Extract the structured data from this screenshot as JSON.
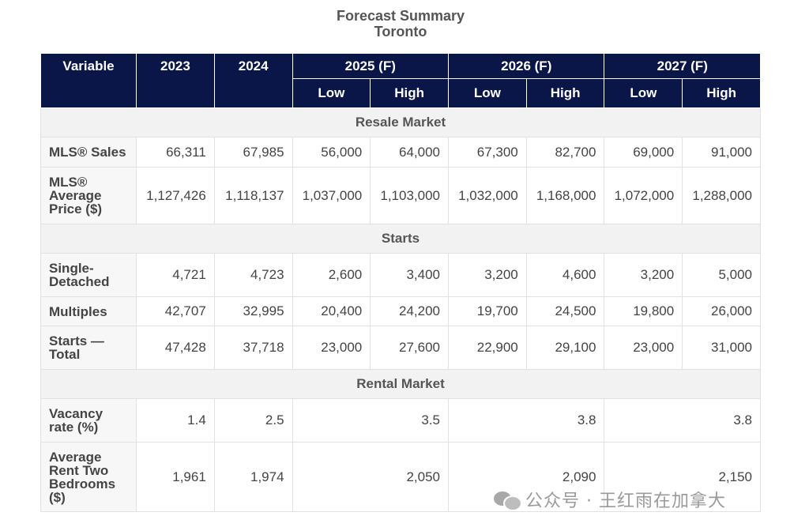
{
  "title": {
    "line1": "Forecast Summary",
    "line2": "Toronto"
  },
  "header": {
    "variable": "Variable",
    "y2023": "2023",
    "y2024": "2024",
    "y2025": "2025 (F)",
    "y2026": "2026 (F)",
    "y2027": "2027 (F)",
    "low": "Low",
    "high": "High"
  },
  "sections": {
    "resale": "Resale Market",
    "starts": "Starts",
    "rental": "Rental Market"
  },
  "rows": {
    "mls_sales": {
      "label": "MLS® Sales",
      "values": [
        "66,311",
        "67,985",
        "56,000",
        "64,000",
        "67,300",
        "82,700",
        "69,000",
        "91,000"
      ]
    },
    "mls_price": {
      "label_lines": [
        "MLS®",
        "Average",
        "Price ($)"
      ],
      "values": [
        "1,127,426",
        "1,118,137",
        "1,037,000",
        "1,103,000",
        "1,032,000",
        "1,168,000",
        "1,072,000",
        "1,288,000"
      ]
    },
    "single_detached": {
      "label_lines": [
        "Single-",
        "Detached"
      ],
      "values": [
        "4,721",
        "4,723",
        "2,600",
        "3,400",
        "3,200",
        "4,600",
        "3,200",
        "5,000"
      ]
    },
    "multiples": {
      "label": "Multiples",
      "values": [
        "42,707",
        "32,995",
        "20,400",
        "24,200",
        "19,700",
        "24,500",
        "19,800",
        "26,000"
      ]
    },
    "starts_total": {
      "label_lines": [
        "Starts —",
        "Total"
      ],
      "values": [
        "47,428",
        "37,718",
        "23,000",
        "27,600",
        "22,900",
        "29,100",
        "23,000",
        "31,000"
      ]
    },
    "vacancy": {
      "label_lines": [
        "Vacancy",
        "rate (%)"
      ],
      "values": [
        "1.4",
        "2.5",
        "3.5",
        "3.8",
        "3.8"
      ]
    },
    "rent": {
      "label_lines": [
        "Average",
        "Rent Two",
        "Bedrooms",
        "($)"
      ],
      "values": [
        "1,961",
        "1,974",
        "2,050",
        "2,090",
        "2,150"
      ]
    }
  },
  "watermark": {
    "text": "公众号 · 王红雨在加拿大"
  }
}
